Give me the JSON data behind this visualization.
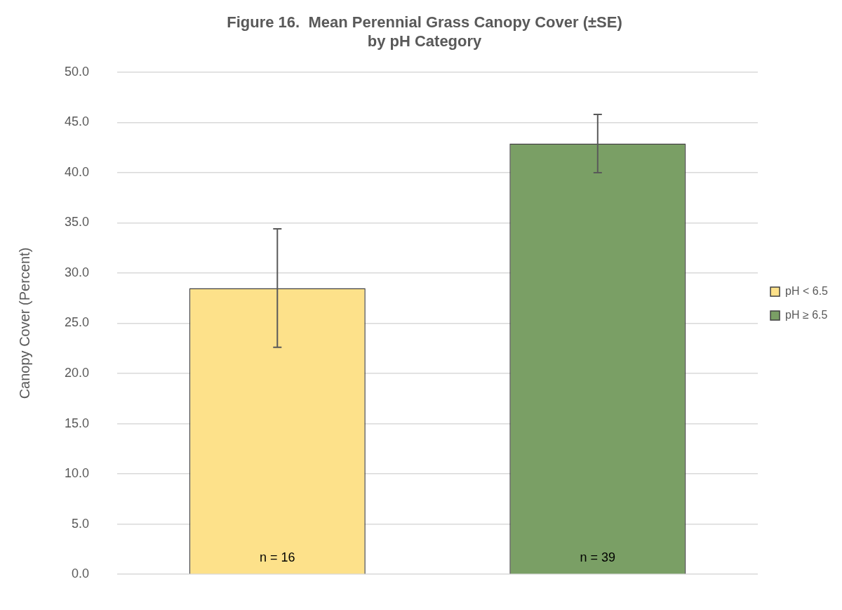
{
  "chart_data": {
    "type": "bar",
    "title": "Figure 16.  Mean Perennial Grass Canopy Cover (±SE)\nby pH Category",
    "ylabel": "Canopy Cover (Percent)",
    "categories": [
      null,
      null
    ],
    "series": [
      {
        "name": "pH < 6.5",
        "color": "#fde18a",
        "values": [
          28.5,
          null
        ],
        "errors": [
          5.9,
          null
        ]
      },
      {
        "name": "pH ≥ 6.5",
        "color": "#7a9f65",
        "values": [
          null,
          42.9
        ],
        "errors": [
          null,
          2.9
        ]
      }
    ],
    "ylim": [
      0,
      50
    ],
    "yticks": [
      {
        "value": 0,
        "label": "0.0"
      },
      {
        "value": 5,
        "label": "5.0"
      },
      {
        "value": 10,
        "label": "10.0"
      },
      {
        "value": 15,
        "label": "15.0"
      },
      {
        "value": 20,
        "label": "20.0"
      },
      {
        "value": 25,
        "label": "25.0"
      },
      {
        "value": 30,
        "label": "30.0"
      },
      {
        "value": 35,
        "label": "35.0"
      },
      {
        "value": 40,
        "label": "40.0"
      },
      {
        "value": 45,
        "label": "45.0"
      },
      {
        "value": 50,
        "label": "50.0"
      }
    ],
    "annotations": [
      "n = 16",
      "n = 39"
    ],
    "grid": "y",
    "legend": "right"
  }
}
